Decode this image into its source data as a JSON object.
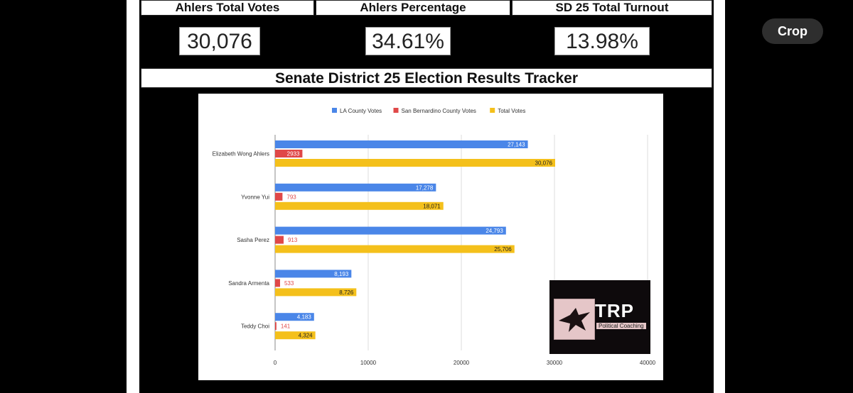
{
  "stats": {
    "ahlers_total_votes": {
      "label": "Ahlers Total Votes",
      "value": "30,076"
    },
    "ahlers_percentage": {
      "label": "Ahlers Percentage",
      "value": "34.61%"
    },
    "turnout": {
      "label": "SD 25 Total Turnout",
      "value": "13.98%"
    }
  },
  "tracker_title": "Senate District 25 Election Results Tracker",
  "crop_label": "Crop",
  "logo": {
    "name": "TRP",
    "tagline": "Political Coaching"
  },
  "colors": {
    "la": "#4a86e8",
    "sb": "#e04848",
    "total": "#f4c01b"
  },
  "chart_data": {
    "type": "bar",
    "orientation": "horizontal",
    "categories": [
      "Elizabeth Wong Ahlers",
      "Yvonne Yui",
      "Sasha Perez",
      "Sandra Armenta",
      "Teddy Choi"
    ],
    "series": [
      {
        "name": "LA County Votes",
        "values": [
          27143,
          17278,
          24793,
          8193,
          4183
        ],
        "labels": [
          "27,143",
          "17,278",
          "24,793",
          "8,193",
          "4,183"
        ]
      },
      {
        "name": "San Bernardino County Votes",
        "values": [
          2933,
          793,
          913,
          533,
          141
        ],
        "labels": [
          "2933",
          "793",
          "913",
          "533",
          "141"
        ]
      },
      {
        "name": "Total Votes",
        "values": [
          30076,
          18071,
          25706,
          8726,
          4324
        ],
        "labels": [
          "30,076",
          "18,071",
          "25,706",
          "8,726",
          "4,324"
        ]
      }
    ],
    "xlim": [
      0,
      40000
    ],
    "xticks": [
      "0",
      "10000",
      "20000",
      "30000",
      "40000"
    ],
    "legend_position": "top",
    "grid": true
  }
}
